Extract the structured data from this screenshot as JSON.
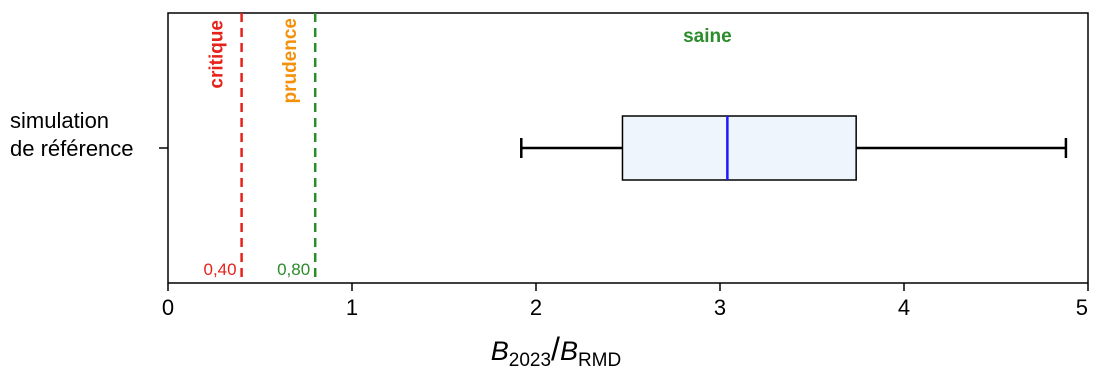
{
  "chart_data": {
    "type": "boxplot",
    "category_label_line1": "simulation",
    "category_label_line2": "de référence",
    "xlabel": {
      "numerator": "B",
      "numerator_sub": "2023",
      "separator": "/",
      "denominator": "B",
      "denominator_sub": "RMD"
    },
    "xlim": [
      0,
      5
    ],
    "xticks": [
      0,
      1,
      2,
      3,
      4,
      5
    ],
    "xtick_labels": [
      "0",
      "1",
      "2",
      "3",
      "4",
      "5"
    ],
    "box": {
      "whisker_low": 1.92,
      "q1": 2.47,
      "median": 3.04,
      "q3": 3.74,
      "whisker_high": 4.88,
      "fill": "#eef5fd",
      "median_color": "#1a1aff"
    },
    "thresholds": [
      {
        "value": 0.4,
        "label": "0,40",
        "color": "#e8201a"
      },
      {
        "value": 0.8,
        "label": "0,80",
        "color": "#2a8c2a"
      }
    ],
    "zones": [
      {
        "label": "critique",
        "color": "#e8201a",
        "orientation": "vertical"
      },
      {
        "label": "prudence",
        "color": "#f5900a",
        "orientation": "vertical"
      },
      {
        "label": "saine",
        "color": "#2a8c2a",
        "orientation": "horizontal"
      }
    ]
  }
}
